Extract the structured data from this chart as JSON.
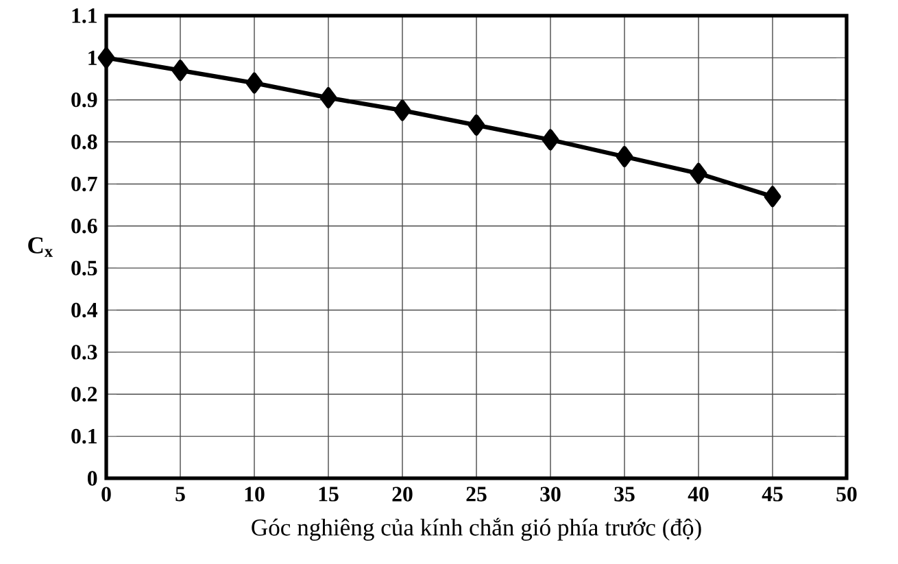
{
  "chart_data": {
    "type": "line",
    "xlabel": "Góc nghiêng của kính chắn gió phía trước (độ)",
    "ylabel": "C$_{x}$",
    "x": [
      0,
      5,
      10,
      15,
      20,
      25,
      30,
      35,
      40,
      45
    ],
    "values": [
      1.0,
      0.97,
      0.94,
      0.905,
      0.875,
      0.84,
      0.805,
      0.765,
      0.725,
      0.67
    ],
    "color": "#000000",
    "marker": "diamond",
    "line_style": "solid",
    "grid": true,
    "xlim": [
      0,
      50
    ],
    "xticks": [
      0,
      5,
      10,
      15,
      20,
      25,
      30,
      35,
      40,
      45,
      50
    ],
    "ylim": [
      0,
      1.1
    ],
    "yticks": [
      0,
      0.1,
      0.2,
      0.3,
      0.4,
      0.5,
      0.6,
      0.7,
      0.8,
      0.9,
      1,
      1.1
    ]
  }
}
